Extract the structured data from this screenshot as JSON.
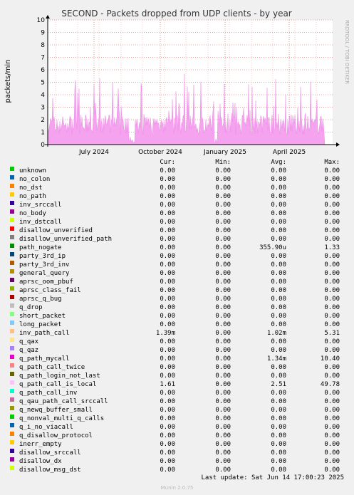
{
  "chart_data": {
    "type": "area",
    "title": "SECOND - Packets dropped from UDP clients - by year",
    "ylabel": "packets/min",
    "ylim": [
      0,
      10
    ],
    "yticks": [
      0,
      1,
      2,
      3,
      4,
      5,
      6,
      7,
      8,
      9,
      10
    ],
    "xticks": [
      "July 2024",
      "October 2024",
      "January 2025",
      "April 2025"
    ],
    "side_label": "RRDTOOL / TOBI OETIKER",
    "series_color": "#f5a3ef",
    "grid": true,
    "columns": [
      "Cur:",
      "Min:",
      "Avg:",
      "Max:"
    ],
    "legend": [
      {
        "name": "unknown",
        "color": "#00cc00",
        "cur": "0.00",
        "min": "0.00",
        "avg": "0.00",
        "max": "0.00"
      },
      {
        "name": "no_colon",
        "color": "#0066b3",
        "cur": "0.00",
        "min": "0.00",
        "avg": "0.00",
        "max": "0.00"
      },
      {
        "name": "no_dst",
        "color": "#ff8000",
        "cur": "0.00",
        "min": "0.00",
        "avg": "0.00",
        "max": "0.00"
      },
      {
        "name": "no_path",
        "color": "#ffcc00",
        "cur": "0.00",
        "min": "0.00",
        "avg": "0.00",
        "max": "0.00"
      },
      {
        "name": "inv_srccall",
        "color": "#330099",
        "cur": "0.00",
        "min": "0.00",
        "avg": "0.00",
        "max": "0.00"
      },
      {
        "name": "no_body",
        "color": "#990099",
        "cur": "0.00",
        "min": "0.00",
        "avg": "0.00",
        "max": "0.00"
      },
      {
        "name": "inv_dstcall",
        "color": "#ccff00",
        "cur": "0.00",
        "min": "0.00",
        "avg": "0.00",
        "max": "0.00"
      },
      {
        "name": "disallow_unverified",
        "color": "#ff0000",
        "cur": "0.00",
        "min": "0.00",
        "avg": "0.00",
        "max": "0.00"
      },
      {
        "name": "disallow_unverified_path",
        "color": "#808080",
        "cur": "0.00",
        "min": "0.00",
        "avg": "0.00",
        "max": "0.00"
      },
      {
        "name": "path_nogate",
        "color": "#008f00",
        "cur": "0.00",
        "min": "0.00",
        "avg": "355.90u",
        "max": "1.33"
      },
      {
        "name": "party_3rd_ip",
        "color": "#00487d",
        "cur": "0.00",
        "min": "0.00",
        "avg": "0.00",
        "max": "0.00"
      },
      {
        "name": "party_3rd_inv",
        "color": "#b35a00",
        "cur": "0.00",
        "min": "0.00",
        "avg": "0.00",
        "max": "0.00"
      },
      {
        "name": "general_query",
        "color": "#b38f00",
        "cur": "0.00",
        "min": "0.00",
        "avg": "0.00",
        "max": "0.00"
      },
      {
        "name": "aprsc_oom_pbuf",
        "color": "#6b006b",
        "cur": "0.00",
        "min": "0.00",
        "avg": "0.00",
        "max": "0.00"
      },
      {
        "name": "aprsc_class_fail",
        "color": "#8fb300",
        "cur": "0.00",
        "min": "0.00",
        "avg": "0.00",
        "max": "0.00"
      },
      {
        "name": "aprsc_q_bug",
        "color": "#b30000",
        "cur": "0.00",
        "min": "0.00",
        "avg": "0.00",
        "max": "0.00"
      },
      {
        "name": "q_drop",
        "color": "#bebebe",
        "cur": "0.00",
        "min": "0.00",
        "avg": "0.00",
        "max": "0.00"
      },
      {
        "name": "short_packet",
        "color": "#80ff80",
        "cur": "0.00",
        "min": "0.00",
        "avg": "0.00",
        "max": "0.00"
      },
      {
        "name": "long_packet",
        "color": "#80c9ff",
        "cur": "0.00",
        "min": "0.00",
        "avg": "0.00",
        "max": "0.00"
      },
      {
        "name": "inv_path_call",
        "color": "#ffc080",
        "cur": "1.39m",
        "min": "0.00",
        "avg": "1.02m",
        "max": "5.31"
      },
      {
        "name": "q_qax",
        "color": "#ffe680",
        "cur": "0.00",
        "min": "0.00",
        "avg": "0.00",
        "max": "0.00"
      },
      {
        "name": "q_qaz",
        "color": "#aa80ff",
        "cur": "0.00",
        "min": "0.00",
        "avg": "0.00",
        "max": "0.00"
      },
      {
        "name": "q_path_mycall",
        "color": "#ee00cc",
        "cur": "0.00",
        "min": "0.00",
        "avg": "1.34m",
        "max": "10.40"
      },
      {
        "name": "q_path_call_twice",
        "color": "#ff8080",
        "cur": "0.00",
        "min": "0.00",
        "avg": "0.00",
        "max": "0.00"
      },
      {
        "name": "q_path_login_not_last",
        "color": "#666600",
        "cur": "0.00",
        "min": "0.00",
        "avg": "0.00",
        "max": "0.00"
      },
      {
        "name": "q_path_call_is_local",
        "color": "#ffbfff",
        "cur": "1.61",
        "min": "0.00",
        "avg": "2.51",
        "max": "49.78"
      },
      {
        "name": "q_path_call_inv",
        "color": "#00ffcc",
        "cur": "0.00",
        "min": "0.00",
        "avg": "0.00",
        "max": "0.00"
      },
      {
        "name": "q_qau_path_call_srccall",
        "color": "#cc6699",
        "cur": "0.00",
        "min": "0.00",
        "avg": "0.00",
        "max": "0.00"
      },
      {
        "name": "q_newq_buffer_small",
        "color": "#999900",
        "cur": "0.00",
        "min": "0.00",
        "avg": "0.00",
        "max": "0.00"
      },
      {
        "name": "q_nonval_multi_q_calls",
        "color": "#00cc00",
        "cur": "0.00",
        "min": "0.00",
        "avg": "0.00",
        "max": "0.00"
      },
      {
        "name": "q_i_no_viacall",
        "color": "#0066b3",
        "cur": "0.00",
        "min": "0.00",
        "avg": "0.00",
        "max": "0.00"
      },
      {
        "name": "q_disallow_protocol",
        "color": "#ff8000",
        "cur": "0.00",
        "min": "0.00",
        "avg": "0.00",
        "max": "0.00"
      },
      {
        "name": "inerr_empty",
        "color": "#ffcc00",
        "cur": "0.00",
        "min": "0.00",
        "avg": "0.00",
        "max": "0.00"
      },
      {
        "name": "disallow_srccall",
        "color": "#330099",
        "cur": "0.00",
        "min": "0.00",
        "avg": "0.00",
        "max": "0.00"
      },
      {
        "name": "disallow_dx",
        "color": "#990099",
        "cur": "0.00",
        "min": "0.00",
        "avg": "0.00",
        "max": "0.00"
      },
      {
        "name": "disallow_msg_dst",
        "color": "#ccff00",
        "cur": "0.00",
        "min": "0.00",
        "avg": "0.00",
        "max": "0.00"
      }
    ]
  },
  "footer": {
    "last_update": "Last update: Sat Jun 14 17:00:23 2025",
    "munin_version": "Munin 2.0.75"
  }
}
